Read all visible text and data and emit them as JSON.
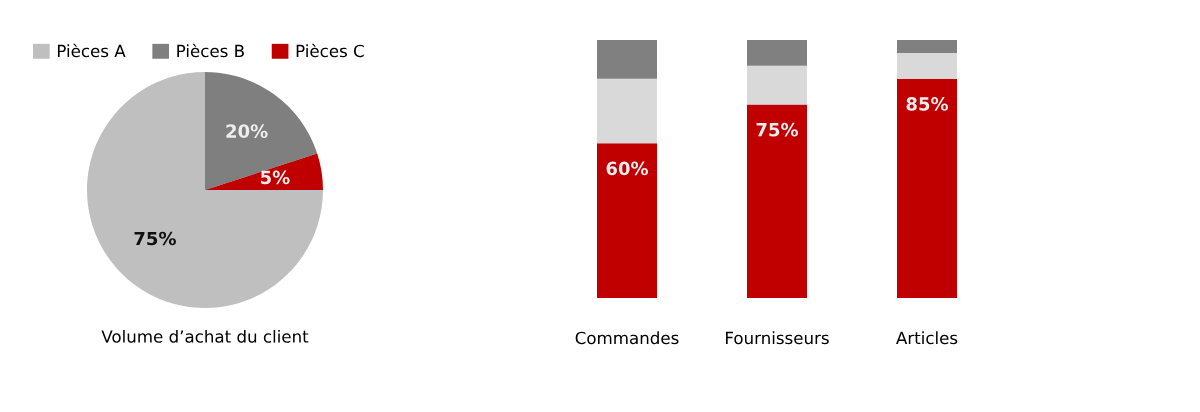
{
  "chart_data": [
    {
      "type": "pie",
      "title": "Volume d’achat du client",
      "categories": [
        "Pièces A",
        "Pièces B",
        "Pièces C"
      ],
      "values": [
        75,
        20,
        5
      ],
      "colors": [
        "#bfbfbf",
        "#7f7f7f",
        "#c00000"
      ],
      "value_labels": [
        "75%",
        "20%",
        "5%"
      ],
      "legend": "top left"
    },
    {
      "type": "bar",
      "stacked": true,
      "categories": [
        "Commandes",
        "Fournisseurs",
        "Articles"
      ],
      "ylim": [
        0,
        100
      ],
      "tick_labels": "x",
      "series": [
        {
          "color": "#c00000",
          "values": [
            60,
            75,
            85
          ],
          "value_labels": [
            "60%",
            "75%",
            "85%"
          ]
        },
        {
          "color": "#d9d9d9",
          "values": [
            25,
            15,
            10
          ]
        },
        {
          "color": "#808080",
          "values": [
            15,
            10,
            5
          ]
        }
      ]
    }
  ]
}
